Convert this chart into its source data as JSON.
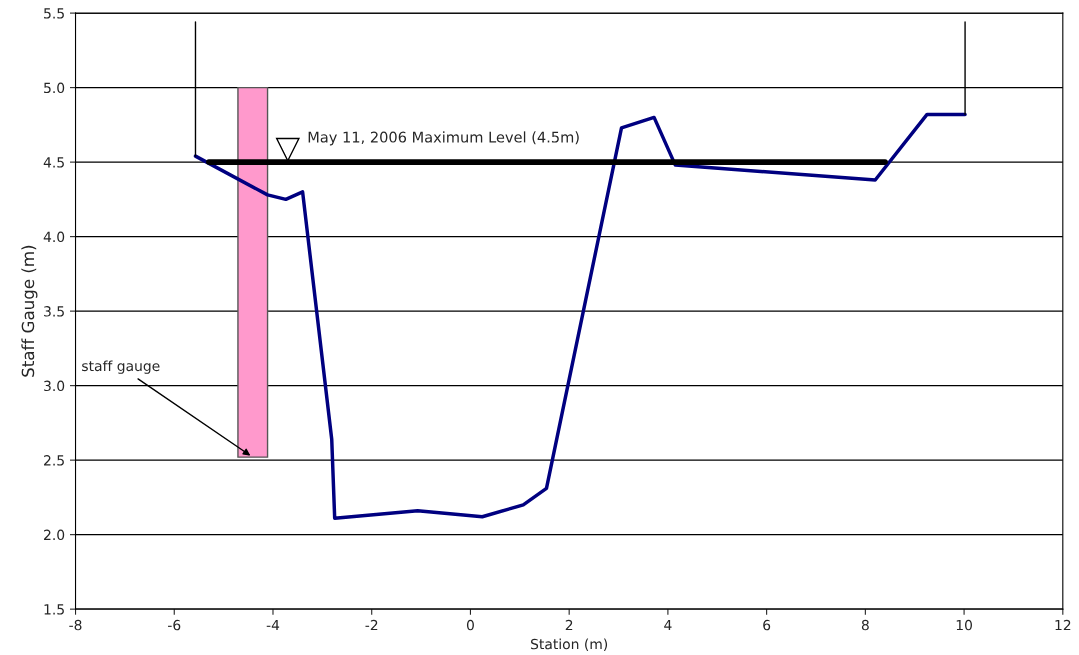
{
  "chart_data": {
    "type": "line",
    "xlabel": "Station (m)",
    "ylabel": "Staff Gauge (m)",
    "xlim": [
      -8,
      12
    ],
    "xticks": [
      -8,
      -6,
      -4,
      -2,
      0,
      2,
      4,
      6,
      8,
      10,
      12
    ],
    "ylim": [
      1.5,
      5.5
    ],
    "yticks": [
      1.5,
      {
        "value": 2,
        "label": "2.0"
      },
      2.5,
      {
        "value": 3,
        "label": "3.0"
      },
      3.5,
      {
        "value": 4,
        "label": "4.0"
      },
      4.5,
      {
        "value": 5,
        "label": "5.0"
      },
      5.5
    ],
    "grid": "y",
    "legend": false,
    "marker": "none",
    "series": [
      {
        "type": "bar",
        "color": "#ff99cc",
        "x": [
          -4.41
        ],
        "base": [
          2.52
        ],
        "values": [
          2.48
        ]
      },
      {
        "color": "#000080",
        "x": [
          -5.57,
          -4.11,
          -3.74,
          -3.4,
          -2.81,
          -2.75,
          -1.07,
          0.24,
          1.07,
          1.54,
          3.06,
          3.72,
          4.15,
          8.2,
          9.25,
          10.02
        ],
        "values": [
          4.54,
          4.28,
          4.25,
          4.3,
          2.64,
          2.11,
          2.16,
          2.12,
          2.2,
          2.31,
          4.73,
          4.8,
          4.48,
          4.38,
          4.82,
          4.82
        ]
      },
      {
        "color": "#000000",
        "x": [
          -5.57,
          -5.57
        ],
        "values": [
          4.54,
          5.44
        ]
      },
      {
        "color": "#000000",
        "x": [
          10.02,
          10.02
        ],
        "values": [
          4.82,
          5.44
        ]
      },
      {
        "color": "#000000",
        "x": [
          -5.3,
          8.4
        ],
        "values": [
          4.5,
          4.5
        ]
      }
    ],
    "annotations": [
      {
        "text": "May 11, 2006 Maximum Level (4.5m)",
        "x": -3.7,
        "y": 4.5
      },
      {
        "text": "staff gauge",
        "x": -4.41,
        "y": 2.52
      }
    ]
  }
}
